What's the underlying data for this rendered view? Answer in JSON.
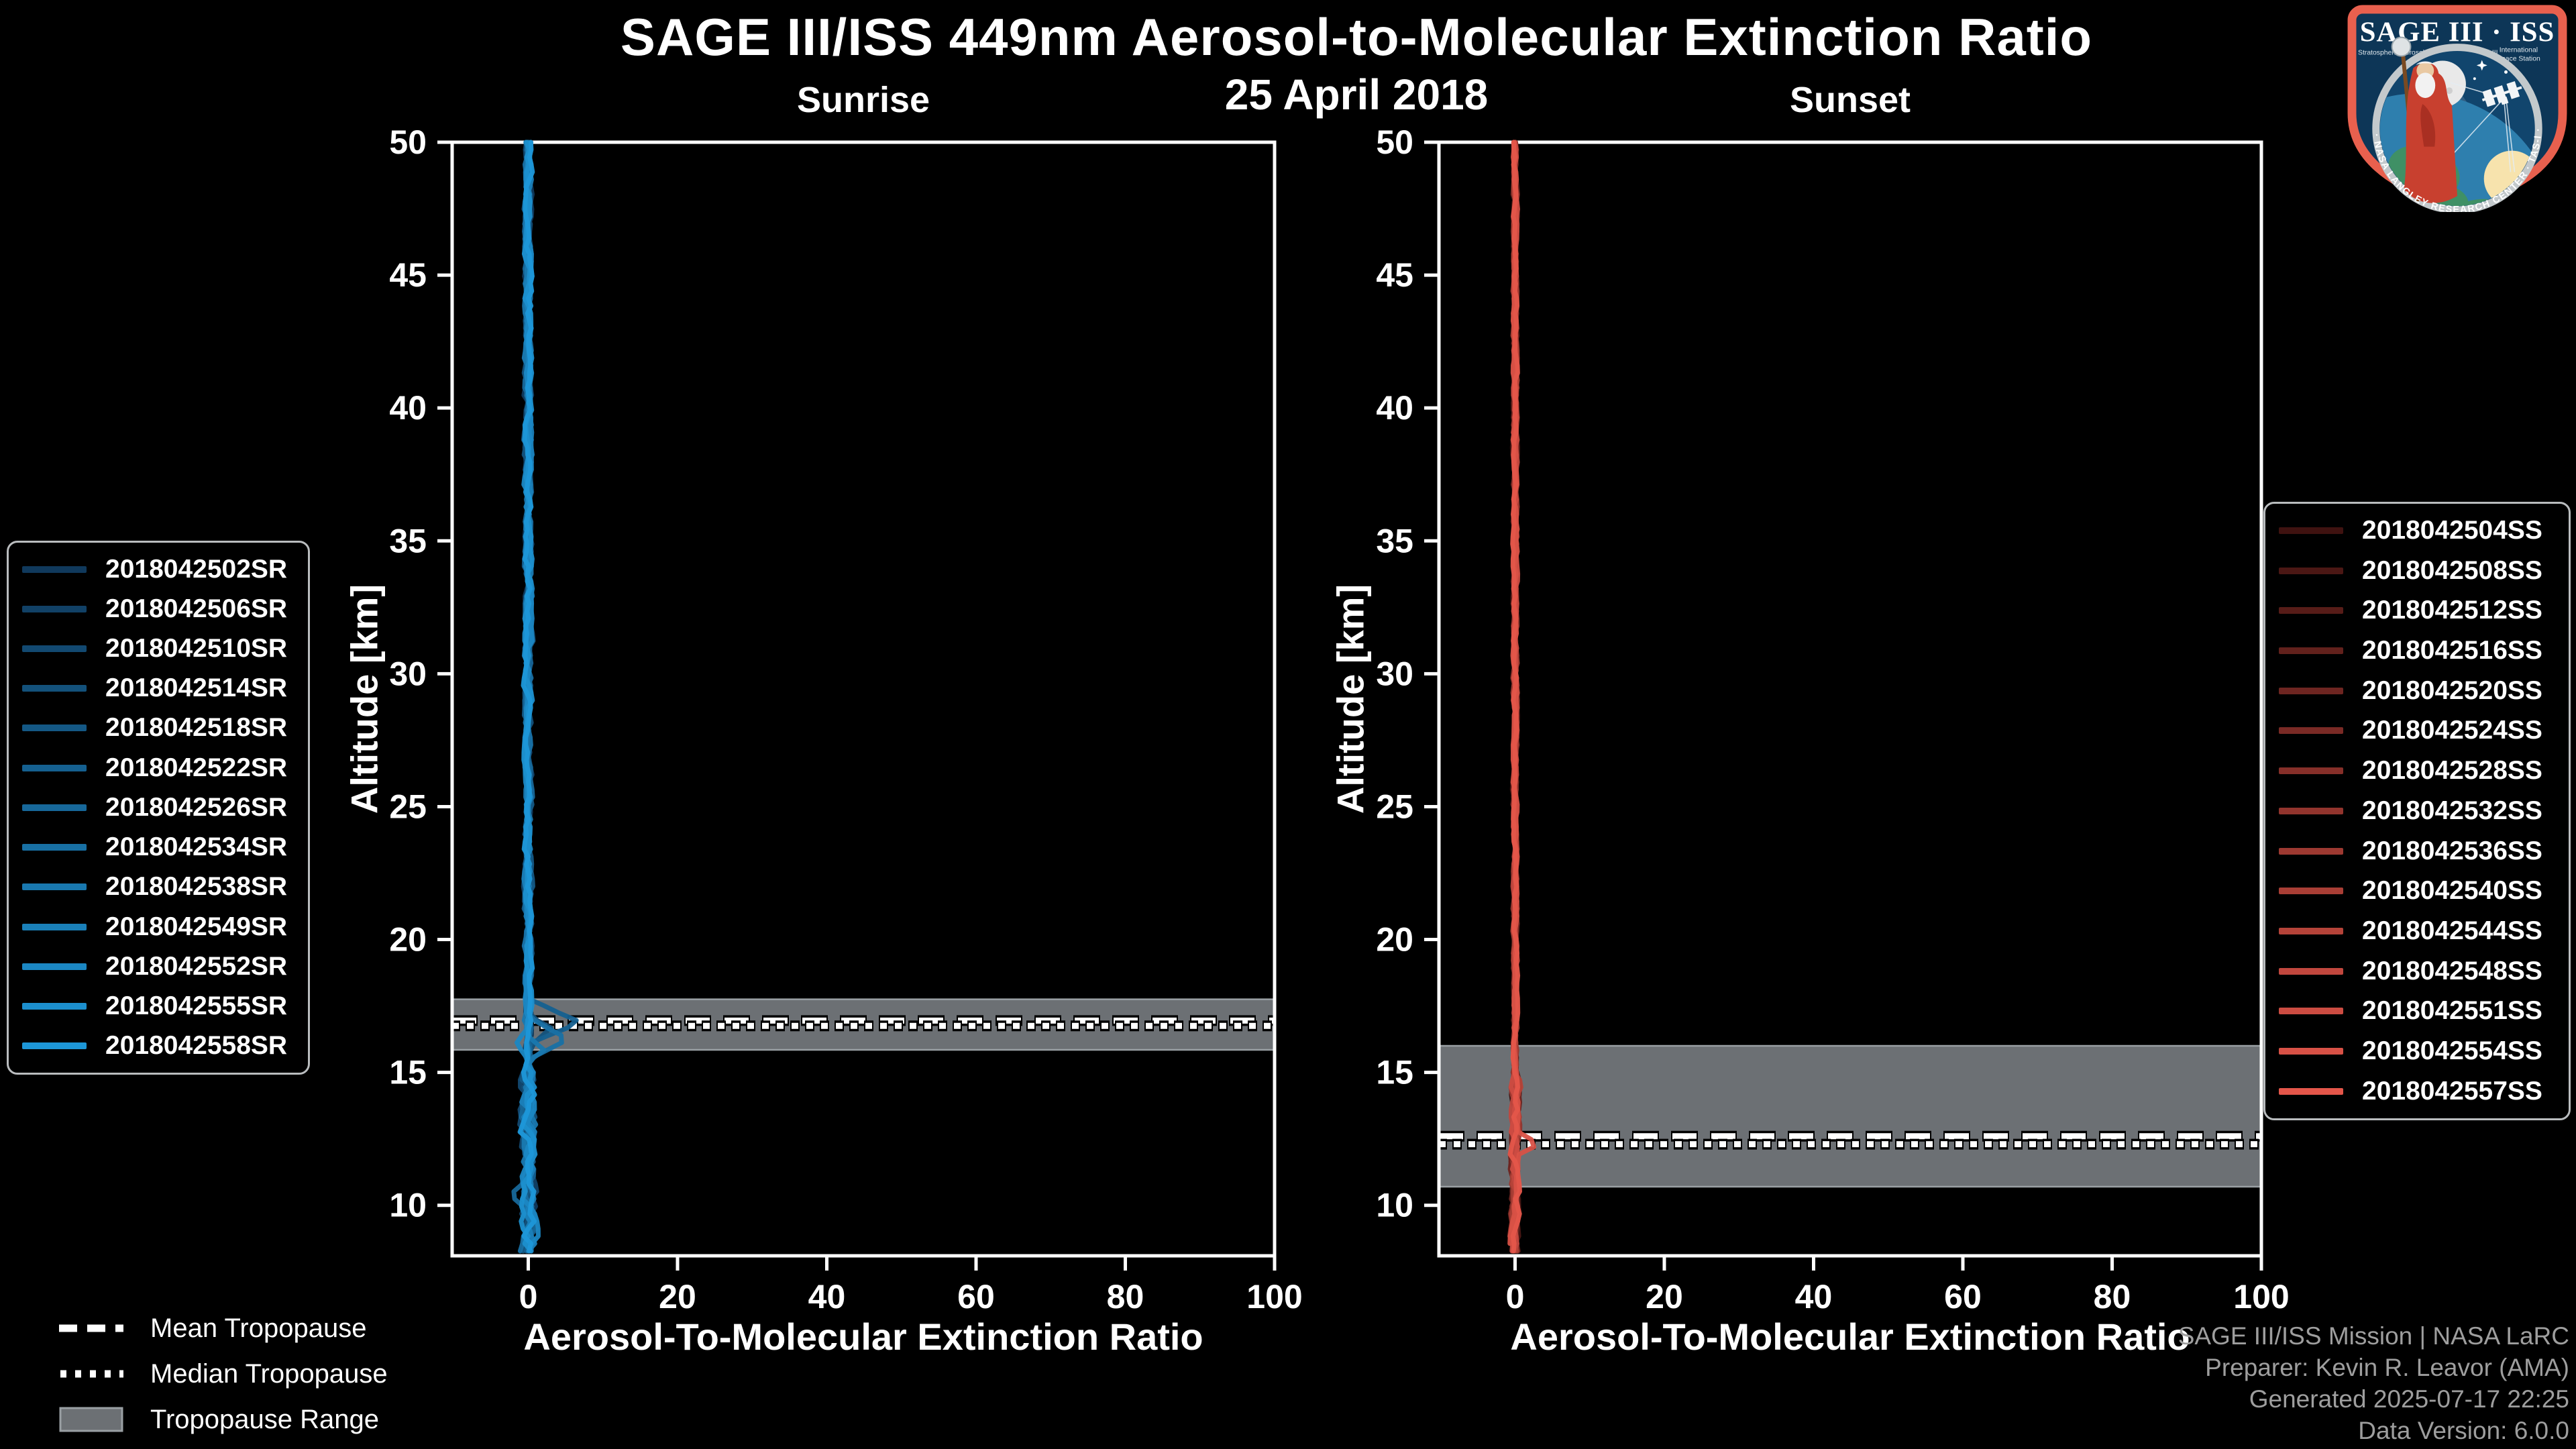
{
  "header": {
    "title": "SAGE III/ISS 449nm Aerosol-to-Molecular Extinction Ratio",
    "date": "25 April 2018"
  },
  "logo": {
    "title": "SAGE III · ISS",
    "subtitle_left": "Stratospheric Aerosol and Gas Experiment III",
    "subtitle_right_1": "International",
    "subtitle_right_2": "Space Station",
    "ring_text": "BALL  ·  NASA LANGLEY RESEARCH CENTER  ·  TAS-I  ·  ESA",
    "colors": {
      "border": "#e8604e",
      "field": "#0d3657",
      "inner_field": "#11456d",
      "ring": "#c3c9cc",
      "earth_water": "#2e7fae",
      "earth_land": "#3f9065",
      "sun": "#f7e3ad",
      "moon": "#e9e9e9",
      "robe": "#c8402f"
    }
  },
  "tropopause_legend": {
    "mean_label": "Mean Tropopause",
    "median_label": "Median Tropopause",
    "range_label": "Tropopause Range",
    "line_color": "#ffffff",
    "range_color": "#6c7074"
  },
  "footer": {
    "lines": [
      "SAGE III/ISS Mission | NASA LaRC",
      "Preparer: Kevin R. Leavor (AMA)",
      "Generated 2025-07-17 22:25",
      "Data Version: 6.0.0"
    ]
  },
  "style_colors": {
    "axis": "#ffffff",
    "tropopause_band": "#6c7074",
    "tropopause_band_edge": "#9aa0a4",
    "footer_text": "#9e9e9e",
    "legend_border": "#b9bcbe"
  },
  "chart_data": [
    {
      "type": "line",
      "id": "sunrise",
      "title": "Sunrise",
      "xlabel": "Aerosol-To-Molecular Extinction Ratio",
      "ylabel": "Altitude [km]",
      "xlim": [
        -10.2,
        100
      ],
      "ylim": [
        8.1,
        50
      ],
      "xticks": [
        0,
        20,
        40,
        60,
        80,
        100
      ],
      "yticks": [
        10,
        15,
        20,
        25,
        30,
        35,
        40,
        45,
        50
      ],
      "grid": false,
      "legend_position": "outside-left",
      "color_start": "#10395c",
      "color_end": "#1d97d8",
      "series_labels": [
        "2018042502SR",
        "2018042506SR",
        "2018042510SR",
        "2018042514SR",
        "2018042518SR",
        "2018042522SR",
        "2018042526SR",
        "2018042534SR",
        "2018042538SR",
        "2018042549SR",
        "2018042552SR",
        "2018042555SR",
        "2018042558SR"
      ],
      "baseline_profile": [
        [
          8.2,
          0
        ],
        [
          10,
          0
        ],
        [
          15,
          0
        ],
        [
          20,
          0
        ],
        [
          30,
          0
        ],
        [
          40,
          0
        ],
        [
          50,
          0
        ]
      ],
      "noise_amplitude": 0.5,
      "noise_amplitude_low": 1.0,
      "features": [
        {
          "series_index": 5,
          "peak_ratio": 7.6,
          "peak_alt_km": 16.9,
          "width_km": 0.95
        },
        {
          "series_index": 7,
          "peak_ratio": 5.4,
          "peak_alt_km": 16.25,
          "width_km": 0.85
        },
        {
          "series_index": 3,
          "peak_ratio": 3.2,
          "peak_alt_km": 16.6,
          "width_km": 0.6
        },
        {
          "series_index": 8,
          "peak_ratio": 2.4,
          "peak_alt_km": 15.9,
          "width_km": 0.55
        },
        {
          "series_index": 10,
          "peak_ratio": -1.4,
          "peak_alt_km": 16.1,
          "width_km": 0.5
        },
        {
          "series_index": 2,
          "peak_ratio": 1.8,
          "peak_alt_km": 11.5,
          "width_km": 0.7
        },
        {
          "series_index": 9,
          "peak_ratio": 1.6,
          "peak_alt_km": 12.7,
          "width_km": 0.6
        },
        {
          "series_index": 6,
          "peak_ratio": -1.4,
          "peak_alt_km": 10.4,
          "width_km": 0.6
        },
        {
          "series_index": 12,
          "peak_ratio": 1.2,
          "peak_alt_km": 14.3,
          "width_km": 0.6
        }
      ],
      "tropopause": {
        "range_km": [
          15.85,
          17.75
        ],
        "mean_km": 16.95,
        "median_km": 16.75
      }
    },
    {
      "type": "line",
      "id": "sunset",
      "title": "Sunset",
      "xlabel": "Aerosol-To-Molecular Extinction Ratio",
      "ylabel": "Altitude [km]",
      "xlim": [
        -10.2,
        100
      ],
      "ylim": [
        8.1,
        50
      ],
      "xticks": [
        0,
        20,
        40,
        60,
        80,
        100
      ],
      "yticks": [
        10,
        15,
        20,
        25,
        30,
        35,
        40,
        45,
        50
      ],
      "grid": false,
      "legend_position": "outside-right",
      "color_start": "#3f1210",
      "color_end": "#e4564a",
      "series_labels": [
        "2018042504SS",
        "2018042508SS",
        "2018042512SS",
        "2018042516SS",
        "2018042520SS",
        "2018042524SS",
        "2018042528SS",
        "2018042532SS",
        "2018042536SS",
        "2018042540SS",
        "2018042544SS",
        "2018042548SS",
        "2018042551SS",
        "2018042554SS",
        "2018042557SS"
      ],
      "baseline_profile": [
        [
          8.2,
          0
        ],
        [
          10,
          0
        ],
        [
          15,
          0
        ],
        [
          20,
          0
        ],
        [
          30,
          0
        ],
        [
          40,
          0
        ],
        [
          50,
          0
        ]
      ],
      "noise_amplitude": 0.3,
      "noise_amplitude_low": 0.55,
      "features": [
        {
          "series_index": 13,
          "peak_ratio": 2.7,
          "peak_alt_km": 12.3,
          "width_km": 0.5
        },
        {
          "series_index": 12,
          "peak_ratio": -0.9,
          "peak_alt_km": 12.9,
          "width_km": 0.45
        },
        {
          "series_index": 10,
          "peak_ratio": 0.8,
          "peak_alt_km": 14.4,
          "width_km": 0.6
        },
        {
          "series_index": 14,
          "peak_ratio": 0.9,
          "peak_alt_km": 9.7,
          "width_km": 0.5
        }
      ],
      "tropopause": {
        "range_km": [
          10.7,
          16.0
        ],
        "mean_km": 12.6,
        "median_km": 12.3
      }
    }
  ]
}
